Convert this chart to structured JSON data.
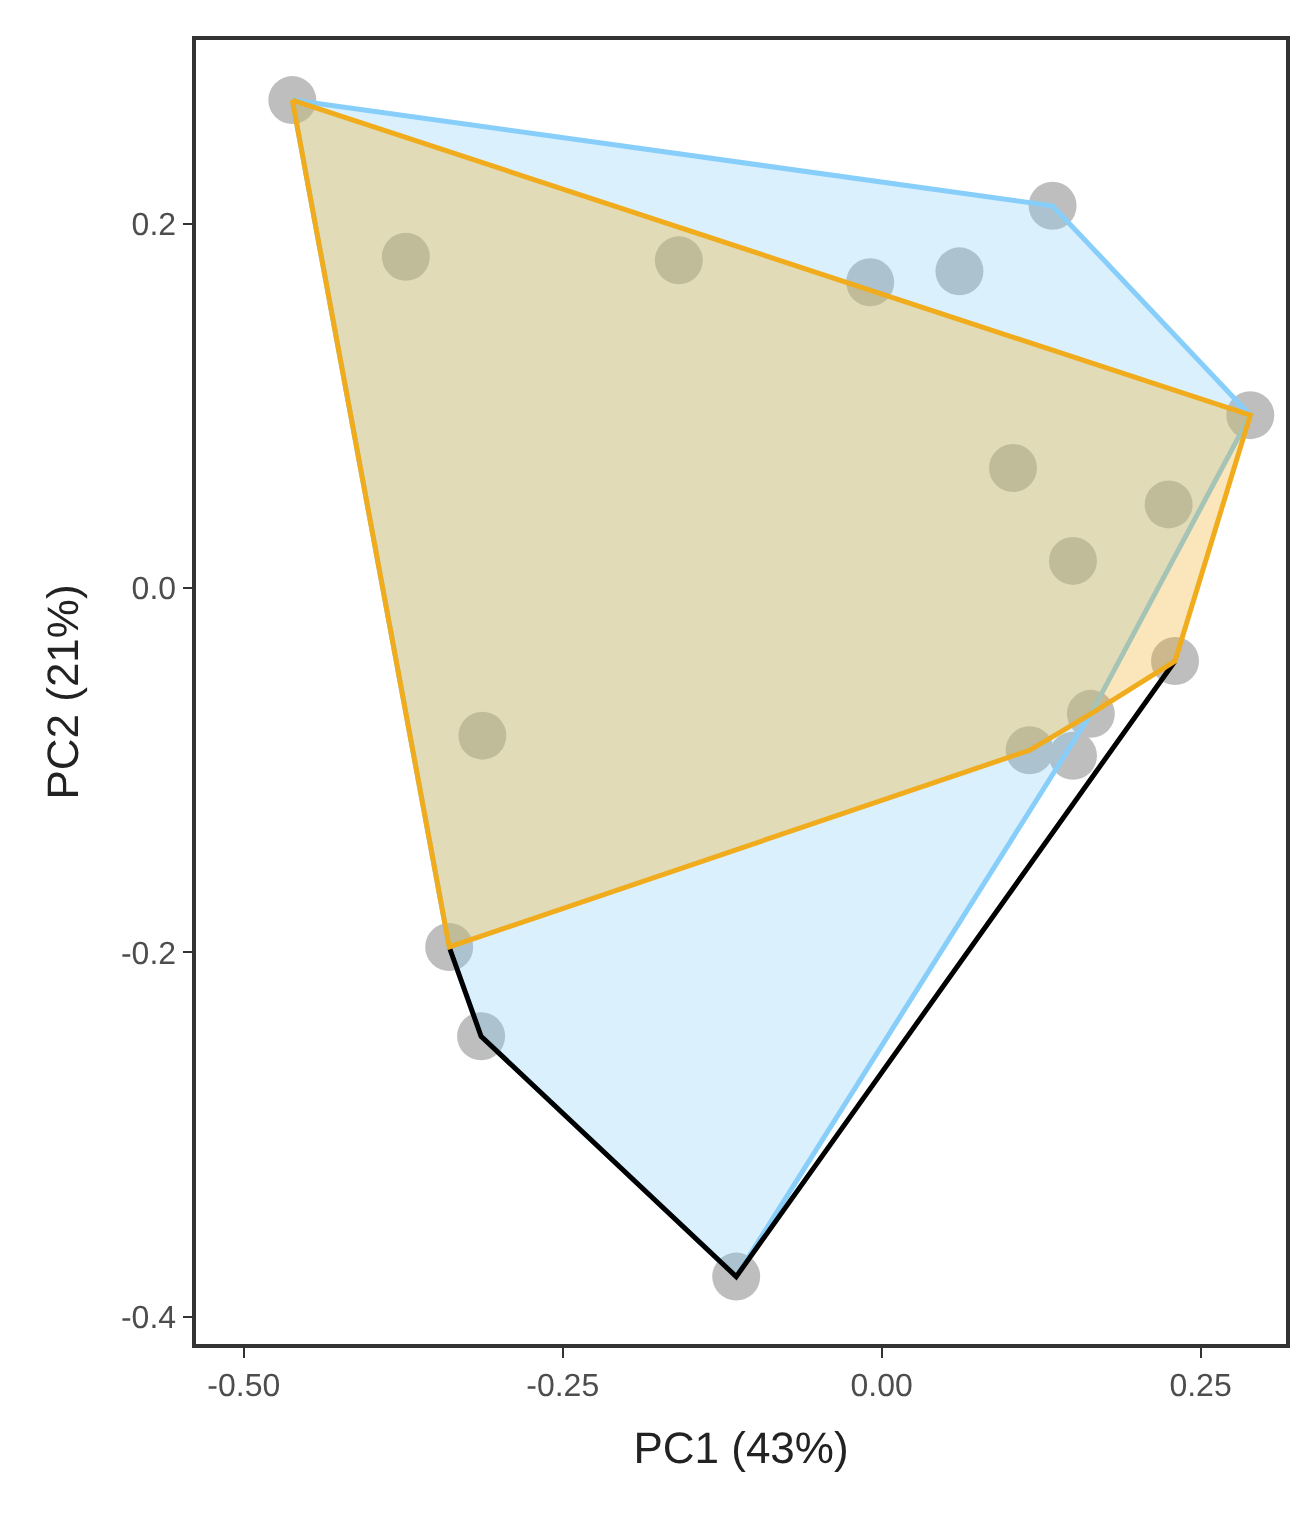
{
  "chart_data": {
    "type": "scatter",
    "xlabel": "PC1 (43%)",
    "ylabel": "PC2 (21%)",
    "xlim": [
      -0.5375,
      0.317
    ],
    "ylim": [
      -0.415,
      0.301
    ],
    "xticks": [
      {
        "value": -0.5,
        "label": "-0.50"
      },
      {
        "value": -0.25,
        "label": "-0.25"
      },
      {
        "value": 0,
        "label": "0.00"
      },
      {
        "value": 0.25,
        "label": "0.25"
      }
    ],
    "yticks": [
      {
        "value": -0.4,
        "label": "-0.4"
      },
      {
        "value": -0.2,
        "label": "-0.2"
      },
      {
        "value": 0,
        "label": "0.0"
      },
      {
        "value": 0.2,
        "label": "0.2"
      }
    ],
    "series": [
      {
        "marker": "circle",
        "color": "#bebebe",
        "x": [
          -0.462,
          -0.373,
          -0.159,
          -0.009,
          0.061,
          0.134,
          0.289,
          0.103,
          0.225,
          0.15,
          0.23,
          0.164,
          0.116,
          0.15,
          -0.313,
          -0.339,
          -0.314,
          -0.114
        ],
        "values": [
          0.268,
          0.182,
          0.18,
          0.168,
          0.174,
          0.21,
          0.095,
          0.066,
          0.046,
          0.015,
          -0.04,
          -0.069,
          -0.089,
          -0.092,
          -0.081,
          -0.197,
          -0.246,
          -0.378
        ]
      },
      {
        "type": "area",
        "marker": "none",
        "color": "#87cefa",
        "x": [
          -0.462,
          0.134,
          0.289,
          0.164,
          -0.114,
          -0.314,
          -0.339,
          -0.462
        ],
        "values": [
          0.268,
          0.21,
          0.095,
          -0.069,
          -0.378,
          -0.246,
          -0.197,
          0.268
        ]
      },
      {
        "type": "line",
        "marker": "none",
        "color": "#000000",
        "x": [
          -0.339,
          -0.314,
          -0.114,
          0.23
        ],
        "values": [
          -0.197,
          -0.246,
          -0.378,
          -0.04
        ]
      },
      {
        "type": "area",
        "marker": "none",
        "color": "#f0ac1c",
        "x": [
          -0.462,
          0.289,
          0.23,
          0.164,
          0.116,
          -0.339,
          -0.462
        ],
        "values": [
          0.268,
          0.095,
          -0.04,
          -0.069,
          -0.089,
          -0.197,
          0.268
        ]
      }
    ]
  }
}
